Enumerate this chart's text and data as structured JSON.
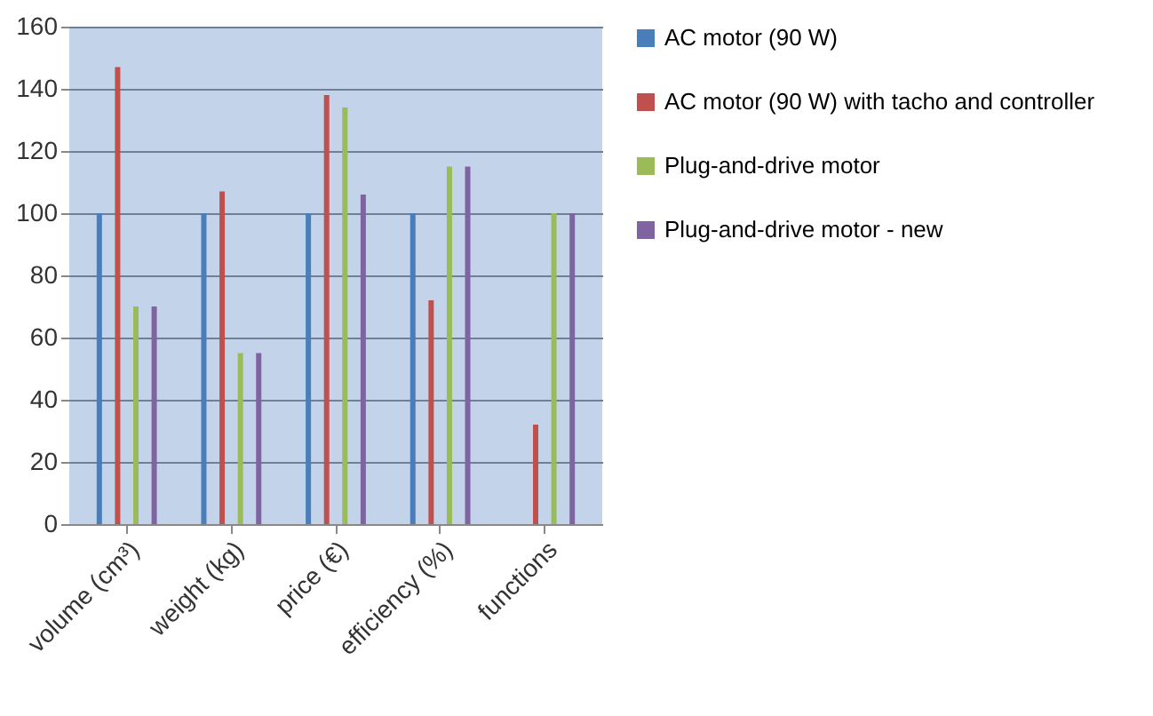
{
  "chart_data": {
    "type": "bar",
    "categories": [
      "volume (cm³)",
      "weight (kg)",
      "price (€)",
      "efficiency (%)",
      "functions"
    ],
    "series": [
      {
        "name": "AC motor (90 W)",
        "color": "#4a7ebb",
        "values": [
          100,
          100,
          100,
          100,
          0
        ]
      },
      {
        "name": "AC motor (90 W) with tacho and controller",
        "color": "#c0504d",
        "values": [
          147,
          107,
          138,
          72,
          32
        ]
      },
      {
        "name": "Plug-and-drive motor",
        "color": "#9bbb59",
        "values": [
          70,
          55,
          134,
          115,
          100
        ]
      },
      {
        "name": "Plug-and-drive motor - new",
        "color": "#8064a2",
        "values": [
          70,
          55,
          106,
          115,
          100
        ]
      }
    ],
    "ylim": [
      0,
      160
    ],
    "yticks": [
      0,
      20,
      40,
      60,
      80,
      100,
      120,
      140,
      160
    ],
    "grid": "y",
    "legend": "right"
  }
}
